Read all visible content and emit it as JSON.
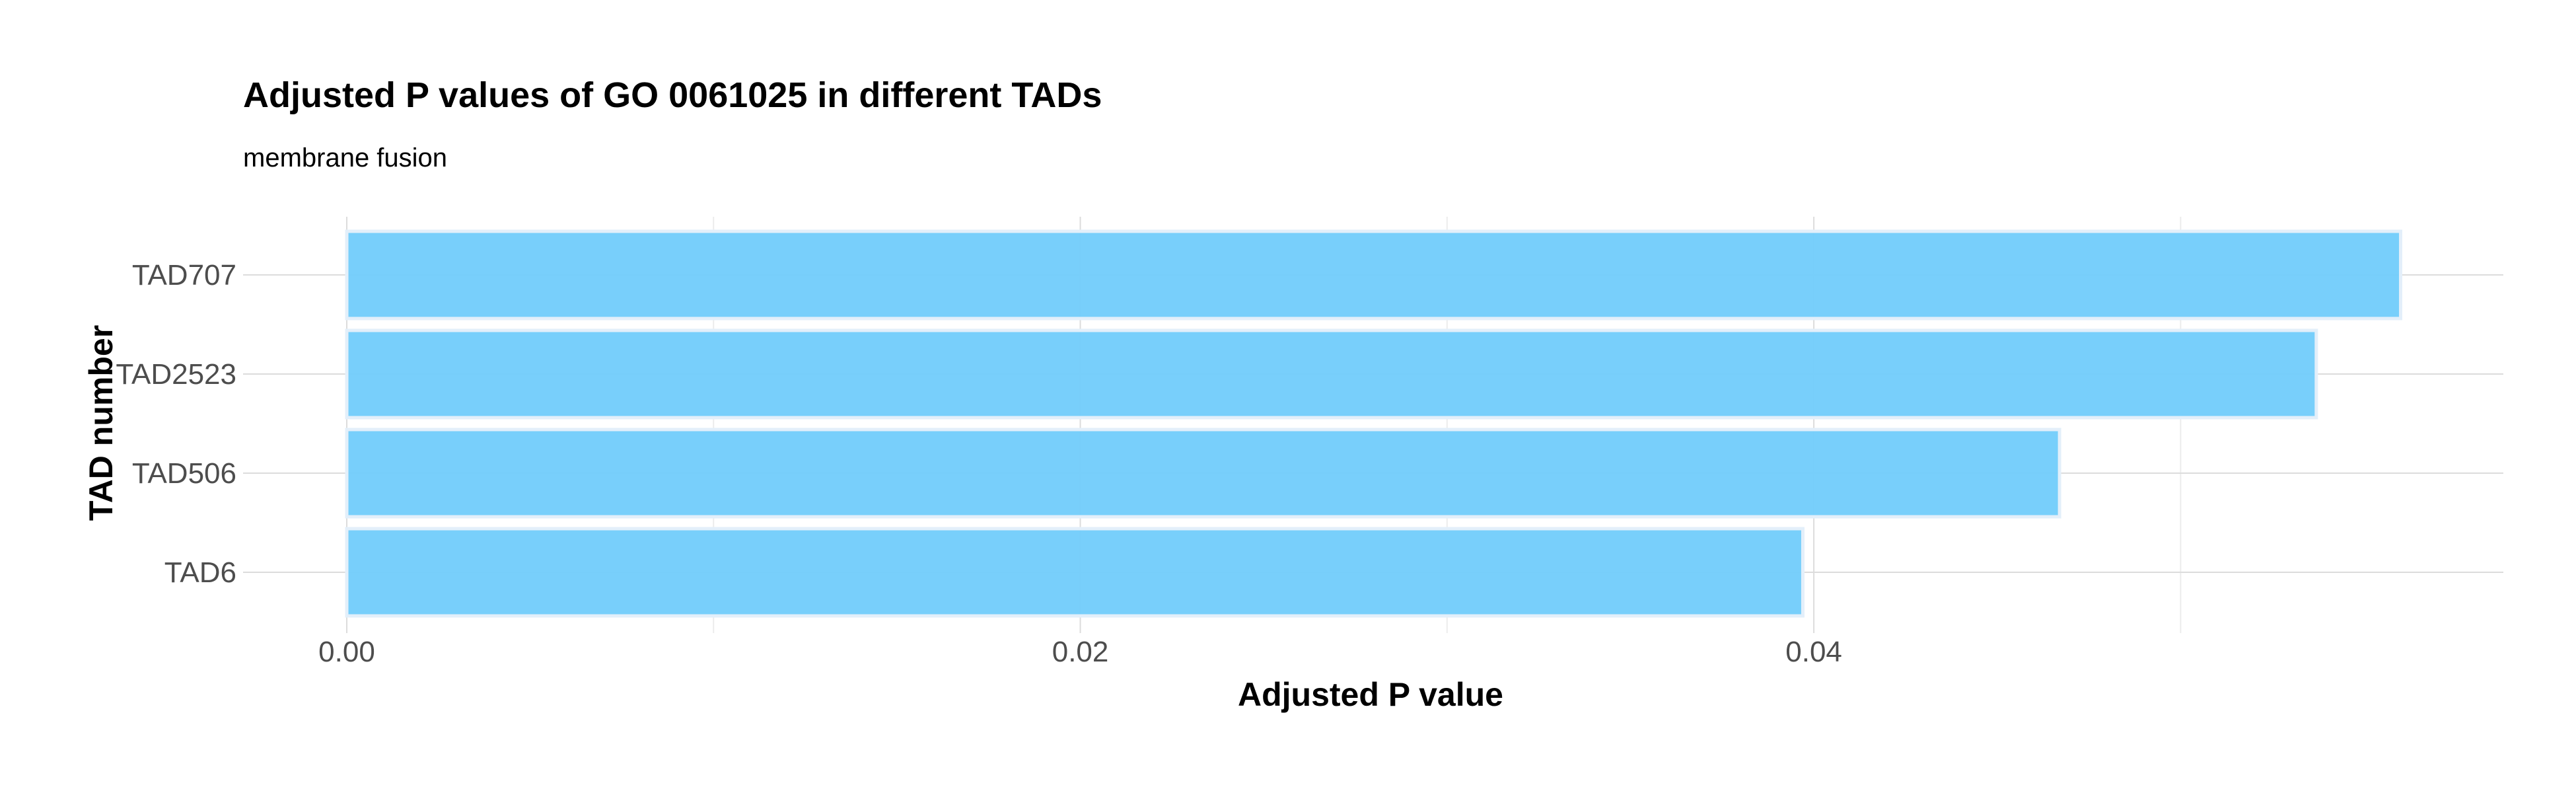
{
  "chart_data": {
    "type": "bar",
    "orientation": "horizontal",
    "title": "Adjusted P values of GO 0061025 in different TADs",
    "subtitle": "membrane fusion",
    "xlabel": "Adjusted P value",
    "ylabel": "TAD number",
    "categories": [
      "TAD707",
      "TAD2523",
      "TAD506",
      "TAD6"
    ],
    "values": [
      0.056,
      0.0537,
      0.0467,
      0.0397
    ],
    "xlim": [
      0,
      0.0588
    ],
    "x_ticks": [
      0.0,
      0.02,
      0.04
    ],
    "x_tick_labels": [
      "0.00",
      "0.02",
      "0.04"
    ],
    "x_minor_ticks": [
      0.01,
      0.03,
      0.05
    ],
    "grid": true,
    "bar_color": "#74cdfb",
    "bar_border_color": "#e3effa"
  }
}
